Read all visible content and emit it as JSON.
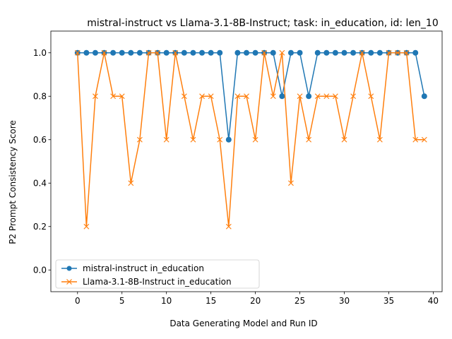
{
  "chart_data": {
    "type": "line",
    "title": "mistral-instruct vs Llama-3.1-8B-Instruct; task: in_education, id: len_10",
    "xlabel": "Data Generating Model and Run ID",
    "ylabel": "P2 Prompt Consistency Score",
    "xlim": [
      -3,
      41
    ],
    "ylim": [
      -0.1,
      1.1
    ],
    "xticks": [
      0,
      5,
      10,
      15,
      20,
      25,
      30,
      35,
      40
    ],
    "yticks": [
      0.0,
      0.2,
      0.4,
      0.6,
      0.8,
      1.0
    ],
    "xtick_labels": [
      "0",
      "5",
      "10",
      "15",
      "20",
      "25",
      "30",
      "35",
      "40"
    ],
    "ytick_labels": [
      "0.0",
      "0.2",
      "0.4",
      "0.6",
      "0.8",
      "1.0"
    ],
    "grid": false,
    "legend_position": "lower-left",
    "x": [
      0,
      1,
      2,
      3,
      4,
      5,
      6,
      7,
      8,
      9,
      10,
      11,
      12,
      13,
      14,
      15,
      16,
      17,
      18,
      19,
      20,
      21,
      22,
      23,
      24,
      25,
      26,
      27,
      28,
      29,
      30,
      31,
      32,
      33,
      34,
      35,
      36,
      37,
      38,
      39
    ],
    "series": [
      {
        "name": "mistral-instruct in_education",
        "color": "#1f77b4",
        "marker": "circle",
        "values": [
          1,
          1,
          1,
          1,
          1,
          1,
          1,
          1,
          1,
          1,
          1,
          1,
          1,
          1,
          1,
          1,
          1,
          0.6,
          1,
          1,
          1,
          1,
          1,
          0.8,
          1,
          1,
          0.8,
          1,
          1,
          1,
          1,
          1,
          1,
          1,
          1,
          1,
          1,
          1,
          1,
          0.8
        ]
      },
      {
        "name": "Llama-3.1-8B-Instruct in_education",
        "color": "#ff7f0e",
        "marker": "x",
        "values": [
          1,
          0.2,
          0.8,
          1,
          0.8,
          0.8,
          0.4,
          0.6,
          1,
          1,
          0.6,
          1,
          0.8,
          0.6,
          0.8,
          0.8,
          0.6,
          0.2,
          0.8,
          0.8,
          0.6,
          1,
          0.8,
          1,
          0.4,
          0.8,
          0.6,
          0.8,
          0.8,
          0.8,
          0.6,
          0.8,
          1,
          0.8,
          0.6,
          1,
          1,
          1,
          0.6,
          0.6
        ]
      }
    ]
  }
}
